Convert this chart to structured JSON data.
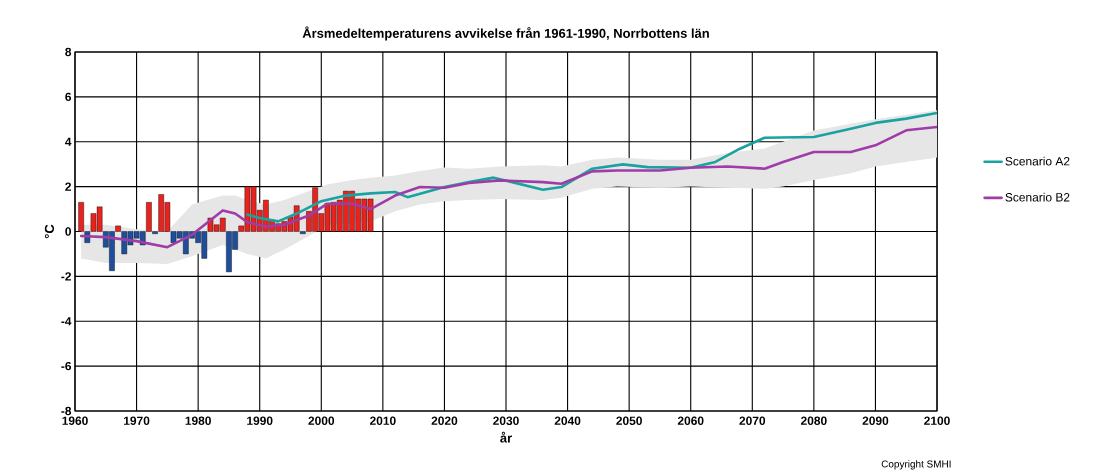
{
  "chart_data": {
    "type": "bar",
    "title": "Årsmedeltemperaturens avvikelse från 1961-1990, Norrbottens län",
    "xlabel": "år",
    "ylabel": "°C",
    "xlim": [
      1960,
      2100
    ],
    "ylim": [
      -8,
      8
    ],
    "xticks": [
      1960,
      1970,
      1980,
      1990,
      2000,
      2010,
      2020,
      2030,
      2040,
      2050,
      2060,
      2070,
      2080,
      2090,
      2100
    ],
    "yticks": [
      -8,
      -6,
      -4,
      -2,
      0,
      2,
      4,
      6,
      8
    ],
    "grid": true,
    "legend": "right",
    "annotations": [
      "Copyright SMHI"
    ],
    "series": [
      {
        "x": [
          1961,
          1962,
          1963,
          1964,
          1965,
          1966,
          1967,
          1968,
          1969,
          1970,
          1971,
          1972,
          1973,
          1974,
          1975,
          1976,
          1977,
          1978,
          1979,
          1980,
          1981,
          1982,
          1983,
          1984,
          1985,
          1986,
          1987,
          1988,
          1989,
          1990,
          1991,
          1992,
          1993,
          1994,
          1995,
          1996,
          1997,
          1998,
          1999,
          2000,
          2001,
          2002,
          2003,
          2004,
          2005,
          2006,
          2007,
          2008
        ],
        "values": [
          1.3,
          -0.5,
          0.8,
          1.1,
          -0.7,
          -1.75,
          0.25,
          -1.0,
          -0.6,
          -0.3,
          -0.6,
          1.3,
          -0.1,
          1.65,
          1.3,
          -0.5,
          -0.3,
          -1.0,
          -0.3,
          -0.5,
          -1.2,
          0.6,
          0.3,
          0.6,
          -1.8,
          -0.8,
          0.25,
          2.0,
          2.0,
          0.95,
          1.4,
          0.5,
          0.35,
          0.45,
          0.65,
          1.15,
          -0.1,
          0.9,
          1.95,
          0.8,
          1.25,
          1.3,
          1.4,
          1.8,
          1.8,
          1.45,
          1.45,
          1.45
        ],
        "colors": [
          "#e8231e",
          "#1f4e9c",
          "#e8231e",
          "#e8231e",
          "#1f4e9c",
          "#1f4e9c",
          "#e8231e",
          "#1f4e9c",
          "#1f4e9c",
          "#1f4e9c",
          "#1f4e9c",
          "#e8231e",
          "#1f4e9c",
          "#e8231e",
          "#e8231e",
          "#1f4e9c",
          "#1f4e9c",
          "#1f4e9c",
          "#1f4e9c",
          "#1f4e9c",
          "#1f4e9c",
          "#e8231e",
          "#e8231e",
          "#e8231e",
          "#1f4e9c",
          "#1f4e9c",
          "#e8231e",
          "#e8231e",
          "#e8231e",
          "#e8231e",
          "#e8231e",
          "#e8231e",
          "#e8231e",
          "#e8231e",
          "#e8231e",
          "#e8231e",
          "#1f4e9c",
          "#e8231e",
          "#e8231e",
          "#e8231e",
          "#e8231e",
          "#e8231e",
          "#e8231e",
          "#e8231e",
          "#e8231e",
          "#e8231e",
          "#e8231e",
          "#e8231e"
        ]
      },
      {
        "type": "line",
        "name": "Scenario A2",
        "color": "#19a3a0",
        "x": [
          1988,
          1990,
          1993,
          1996,
          2000,
          2004,
          2008,
          2012,
          2014,
          2020,
          2024,
          2028,
          2031,
          2036,
          2039,
          2044,
          2049,
          2053,
          2060,
          2064,
          2068,
          2072,
          2080,
          2086,
          2090,
          2095,
          2100
        ],
        "values": [
          0.75,
          0.6,
          0.45,
          0.8,
          1.35,
          1.6,
          1.7,
          1.76,
          1.53,
          1.98,
          2.2,
          2.4,
          2.2,
          1.86,
          1.98,
          2.8,
          2.99,
          2.87,
          2.84,
          3.1,
          3.69,
          4.18,
          4.21,
          4.58,
          4.84,
          5.03,
          5.28
        ]
      },
      {
        "type": "line",
        "name": "Scenario B2",
        "color": "#a03ca8",
        "x": [
          1961,
          1965,
          1970,
          1975,
          1979,
          1984,
          1986,
          1988,
          1991,
          1994,
          1998,
          2001,
          2005,
          2008,
          2012,
          2016,
          2020,
          2024,
          2029,
          2036,
          2039,
          2044,
          2048,
          2055,
          2060,
          2066,
          2072,
          2075,
          2080,
          2086,
          2090,
          2095,
          2100
        ],
        "values": [
          -0.2,
          -0.25,
          -0.43,
          -0.7,
          -0.15,
          0.94,
          0.8,
          0.42,
          0.22,
          0.3,
          0.71,
          1.24,
          1.24,
          1.0,
          1.6,
          1.98,
          1.95,
          2.16,
          2.28,
          2.2,
          2.13,
          2.68,
          2.72,
          2.72,
          2.84,
          2.9,
          2.8,
          3.1,
          3.54,
          3.54,
          3.84,
          4.51,
          4.66
        ],
        "lower": [
          -1.2,
          -1.4,
          -1.4,
          -1.45,
          -1.1,
          -0.6,
          -0.8,
          -1.0,
          -1.2,
          -0.8,
          -0.2,
          0.3,
          0.4,
          0.45,
          0.9,
          1.2,
          1.35,
          1.4,
          1.45,
          1.4,
          1.5,
          1.9,
          2.0,
          1.95,
          2.0,
          1.95,
          1.9,
          2.0,
          2.3,
          2.6,
          2.9,
          3.1,
          3.3
        ],
        "upper": [
          0.3,
          0.3,
          0.1,
          0.0,
          1.2,
          1.6,
          1.6,
          1.4,
          1.2,
          1.4,
          1.8,
          2.1,
          2.3,
          2.4,
          2.5,
          2.7,
          2.85,
          2.8,
          2.9,
          2.95,
          2.9,
          3.2,
          3.3,
          3.2,
          3.2,
          3.5,
          3.7,
          4.0,
          4.5,
          4.8,
          5.0,
          5.2,
          5.4
        ]
      }
    ]
  }
}
